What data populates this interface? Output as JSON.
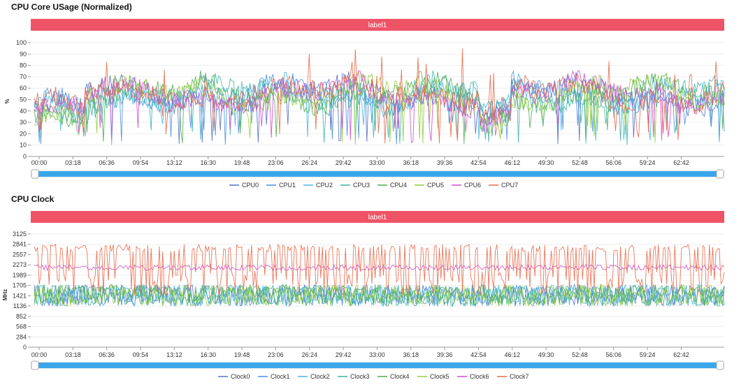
{
  "colors": {
    "band": "#ef5466",
    "slider_fill": "#3aa6ea",
    "slider_track": "#e3e7ee",
    "axis": "#999999",
    "grid": "#eeeeee"
  },
  "chart_data": [
    {
      "type": "line",
      "title": "CPU Core USage (Normalized)",
      "band_label": "label1",
      "ylabel": "%",
      "ylim": [
        0,
        100
      ],
      "yticks": [
        "0",
        "10",
        "20",
        "30",
        "40",
        "50",
        "60",
        "70",
        "80",
        "90",
        "100"
      ],
      "xticks": [
        "00:00",
        "03:18",
        "06:36",
        "09:54",
        "13:12",
        "16:30",
        "19:48",
        "23:06",
        "26:24",
        "29:42",
        "33:00",
        "36:18",
        "39:36",
        "42:54",
        "46:12",
        "49:30",
        "52:48",
        "56:06",
        "59:24",
        "62:42"
      ],
      "x_unit_seconds_per_tick": 198,
      "x_range_seconds": [
        0,
        3960
      ],
      "series": [
        {
          "name": "CPU0",
          "color": "#5470c6"
        },
        {
          "name": "CPU1",
          "color": "#4a90e2"
        },
        {
          "name": "CPU2",
          "color": "#45b6e0"
        },
        {
          "name": "CPU3",
          "color": "#3fb1a8"
        },
        {
          "name": "CPU4",
          "color": "#4caf50"
        },
        {
          "name": "CPU5",
          "color": "#91cc3c"
        },
        {
          "name": "CPU6",
          "color": "#d04ccf"
        },
        {
          "name": "CPU7",
          "color": "#e8694a"
        }
      ]
    },
    {
      "type": "line",
      "title": "CPU Clock",
      "band_label": "label1",
      "ylabel": "MHz",
      "ylim": [
        0,
        3125
      ],
      "yticks": [
        "0",
        "284",
        "568",
        "852",
        "1136",
        "1421",
        "1705",
        "1989",
        "2273",
        "2557",
        "2841",
        "3125"
      ],
      "xticks": [
        "00:00",
        "03:18",
        "06:36",
        "09:54",
        "13:12",
        "16:30",
        "19:48",
        "23:06",
        "26:24",
        "29:42",
        "33:00",
        "36:18",
        "39:36",
        "42:54",
        "46:12",
        "49:30",
        "52:48",
        "56:06",
        "59:24",
        "62:42"
      ],
      "x_range_seconds": [
        0,
        3960
      ],
      "series": [
        {
          "name": "Clock0",
          "color": "#5470c6"
        },
        {
          "name": "Clock1",
          "color": "#4a90e2"
        },
        {
          "name": "Clock2",
          "color": "#45b6e0"
        },
        {
          "name": "Clock3",
          "color": "#3fb1a8"
        },
        {
          "name": "Clock4",
          "color": "#4caf50"
        },
        {
          "name": "Clock5",
          "color": "#91cc3c"
        },
        {
          "name": "Clock6",
          "color": "#d04ccf"
        },
        {
          "name": "Clock7",
          "color": "#e8694a"
        }
      ]
    }
  ]
}
